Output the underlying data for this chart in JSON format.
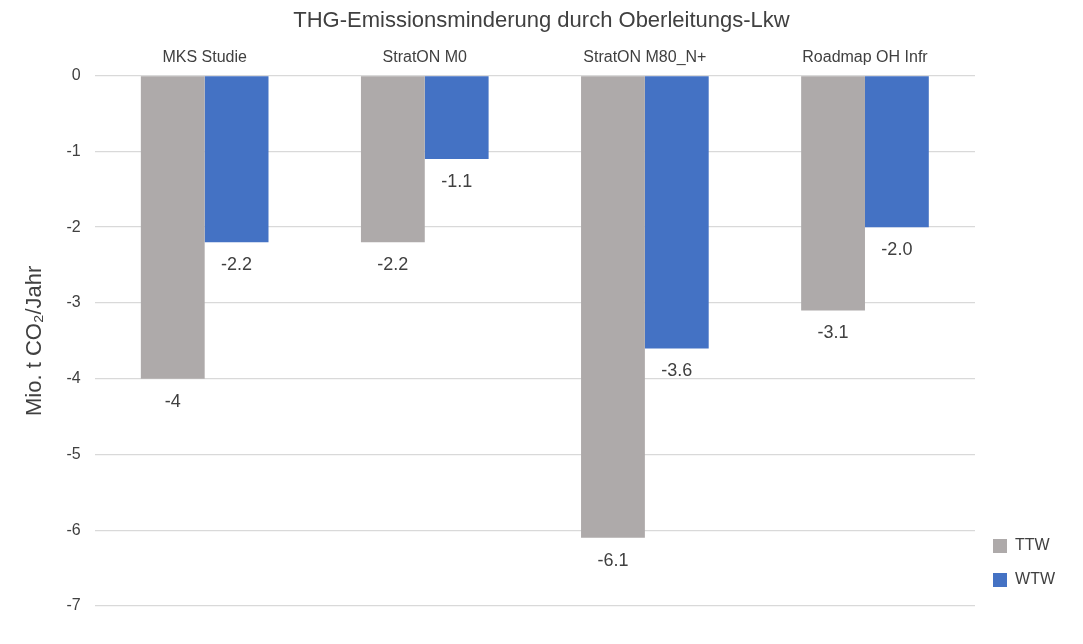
{
  "chart_data": {
    "type": "bar",
    "title": "THG-Emissionsminderung durch Oberleitungs-Lkw",
    "ylabel": "Mio. t CO₂/Jahr",
    "categories": [
      "MKS Studie",
      "StratON M0",
      "StratON M80_N+",
      "Roadmap OH Infr"
    ],
    "series": [
      {
        "name": "TTW",
        "color": "#aeaaaa",
        "values": [
          -4,
          -2.2,
          -6.1,
          -3.1
        ],
        "value_labels": [
          "-4",
          "-2.2",
          "-6.1",
          "-3.1"
        ]
      },
      {
        "name": "WTW",
        "color": "#4472c4",
        "values": [
          -2.2,
          -1.1,
          -3.6,
          -2.0
        ],
        "value_labels": [
          "-2.2",
          "-1.1",
          "-3.6",
          "-2.0"
        ]
      }
    ],
    "ylim": [
      -7,
      0
    ],
    "yticks": [
      0,
      -1,
      -2,
      -3,
      -4,
      -5,
      -6,
      -7
    ],
    "grid": "y",
    "legend": "right"
  }
}
